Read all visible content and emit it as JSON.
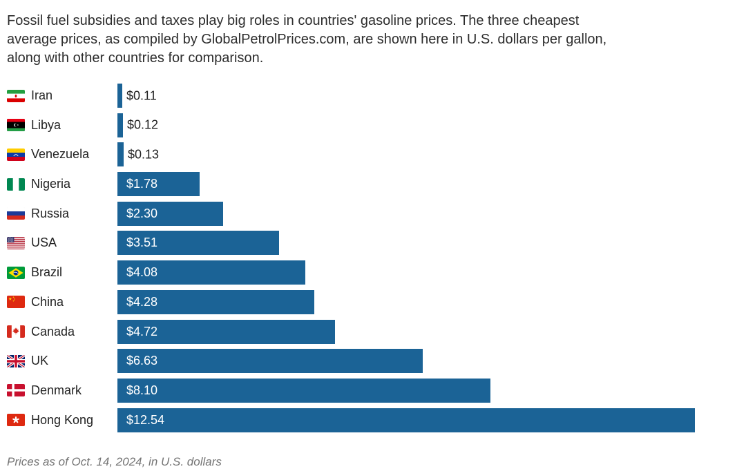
{
  "header": {
    "description_lines": [
      "Fossil fuel subsidies and taxes play big roles in countries' gasoline prices. The three cheapest",
      "average prices, as compiled by GlobalPetrolPrices.com, are shown here in U.S. dollars per gallon,",
      "along with other countries for comparison."
    ]
  },
  "chart_data": {
    "type": "bar",
    "orientation": "horizontal",
    "unit": "U.S. dollars per gallon",
    "xlim": [
      0,
      12.54
    ],
    "grid": false,
    "legend": false,
    "bar_color": "#1b6396",
    "categories": [
      "Iran",
      "Libya",
      "Venezuela",
      "Nigeria",
      "Russia",
      "USA",
      "Brazil",
      "China",
      "Canada",
      "UK",
      "Denmark",
      "Hong Kong"
    ],
    "values": [
      0.11,
      0.12,
      0.13,
      1.78,
      2.3,
      3.51,
      4.08,
      4.28,
      4.72,
      6.63,
      8.1,
      12.54
    ],
    "rows": [
      {
        "country": "Iran",
        "flag": "iran",
        "value": 0.11,
        "label": "$0.11"
      },
      {
        "country": "Libya",
        "flag": "libya",
        "value": 0.12,
        "label": "$0.12"
      },
      {
        "country": "Venezuela",
        "flag": "venezuela",
        "value": 0.13,
        "label": "$0.13"
      },
      {
        "country": "Nigeria",
        "flag": "nigeria",
        "value": 1.78,
        "label": "$1.78"
      },
      {
        "country": "Russia",
        "flag": "russia",
        "value": 2.3,
        "label": "$2.30"
      },
      {
        "country": "USA",
        "flag": "usa",
        "value": 3.51,
        "label": "$3.51"
      },
      {
        "country": "Brazil",
        "flag": "brazil",
        "value": 4.08,
        "label": "$4.08"
      },
      {
        "country": "China",
        "flag": "china",
        "value": 4.28,
        "label": "$4.28"
      },
      {
        "country": "Canada",
        "flag": "canada",
        "value": 4.72,
        "label": "$4.72"
      },
      {
        "country": "UK",
        "flag": "uk",
        "value": 6.63,
        "label": "$6.63"
      },
      {
        "country": "Denmark",
        "flag": "denmark",
        "value": 8.1,
        "label": "$8.10"
      },
      {
        "country": "Hong Kong",
        "flag": "hongkong",
        "value": 12.54,
        "label": "$12.54"
      }
    ]
  },
  "footer": {
    "note": "Prices as of Oct. 14, 2024, in U.S. dollars"
  }
}
